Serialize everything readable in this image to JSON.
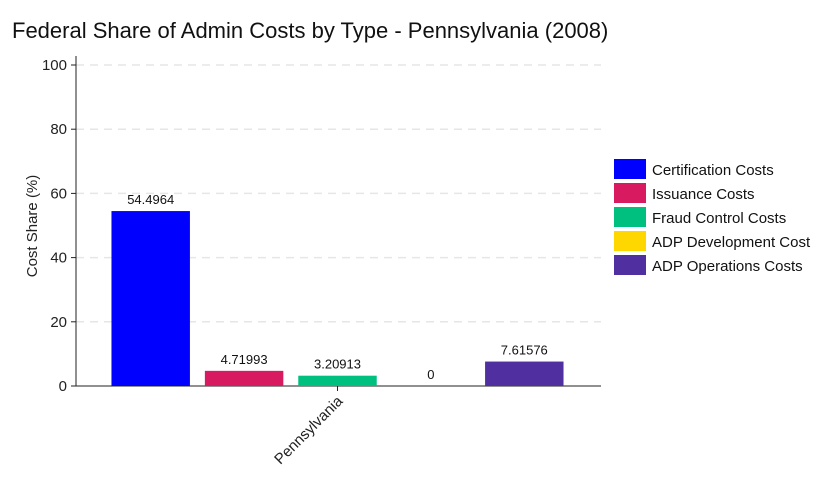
{
  "chart_data": {
    "type": "bar",
    "title": "Federal Share of Admin Costs by Type - Pennsylvania (2008)",
    "xlabel": "",
    "ylabel": "Cost Share (%)",
    "ylim": [
      0,
      100
    ],
    "yticks": [
      0,
      20,
      40,
      60,
      80,
      100
    ],
    "categories": [
      "Pennsylvania"
    ],
    "grid": "horizontal-dashed",
    "legend_position": "right",
    "series": [
      {
        "name": "Certification Costs",
        "values": [
          54.4964
        ],
        "label": "54.4964",
        "color": "#0000ff"
      },
      {
        "name": "Issuance Costs",
        "values": [
          4.71993
        ],
        "label": "4.71993",
        "color": "#d81b60"
      },
      {
        "name": "Fraud Control Costs",
        "values": [
          3.20913
        ],
        "label": "3.20913",
        "color": "#00c080"
      },
      {
        "name": "ADP Development Cost",
        "values": [
          0
        ],
        "label": "0",
        "color": "#ffd700"
      },
      {
        "name": "ADP Operations Costs",
        "values": [
          7.61576
        ],
        "label": "7.61576",
        "color": "#5030a0"
      }
    ]
  }
}
